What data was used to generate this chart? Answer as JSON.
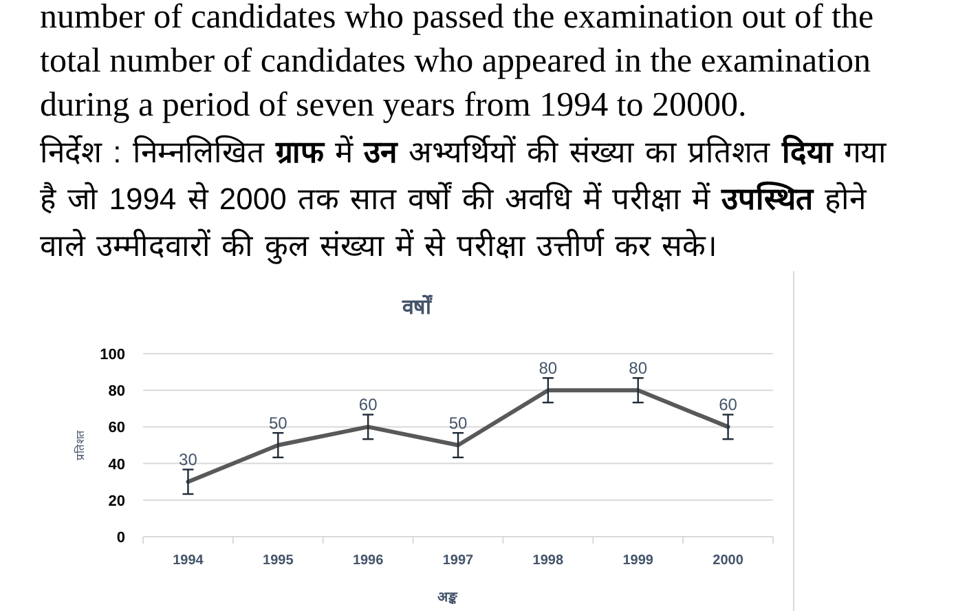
{
  "chart_data": {
    "type": "line",
    "title": "वर्षों",
    "xlabel": "अङ्क",
    "ylabel": "प्रतिशत",
    "categories": [
      "1994",
      "1995",
      "1996",
      "1997",
      "1998",
      "1999",
      "2000"
    ],
    "values": [
      30,
      50,
      60,
      50,
      80,
      80,
      60
    ],
    "errors": [
      6.7,
      6.7,
      6.7,
      6.7,
      6.7,
      6.7,
      6.7
    ],
    "color": "#595959",
    "ylim": [
      0,
      100
    ],
    "yticks": [
      0,
      20,
      40,
      60,
      80,
      100
    ],
    "grid": "y",
    "data_labels": true,
    "annotations": [
      "number of candidates who passed the examination out of the total number of candidates who appeared in the examination during a period of seven years from 1994 to 20000.",
      "निर्देश : निम्नलिखित **ग्राफ** में **उन** अभ्यर्थियों की संख्या का प्रतिशत **दिया** गया है जो 1994 से 2000 तक सात वर्षों की अवधि में परीक्षा में **उपस्थित** होने वाले उम्मीदवारों की कुल संख्या में से परीक्षा उत्तीर्ण कर सके।"
    ]
  }
}
